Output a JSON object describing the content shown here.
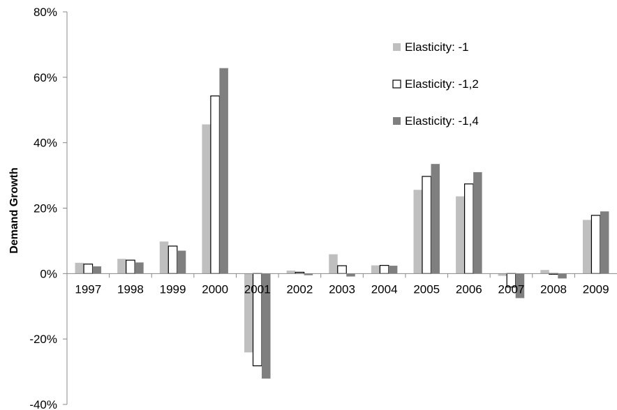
{
  "chart_data": {
    "type": "bar",
    "title": "",
    "xlabel": "",
    "ylabel": "Demand Growth",
    "ylim": [
      -40,
      80
    ],
    "yticks": [
      -40,
      -20,
      0,
      20,
      40,
      60,
      80
    ],
    "ytick_labels": [
      "-40%",
      "-20%",
      "0%",
      "20%",
      "40%",
      "60%",
      "80%"
    ],
    "categories": [
      "1997",
      "1998",
      "1999",
      "2000",
      "2001",
      "2002",
      "2003",
      "2004",
      "2005",
      "2006",
      "2007",
      "2008",
      "2009"
    ],
    "series": [
      {
        "name": "Elasticity: -1",
        "color": "#bfbfbf",
        "values": [
          3.3,
          4.5,
          9.8,
          45.6,
          -24.1,
          0.9,
          5.9,
          2.5,
          25.6,
          23.6,
          -0.7,
          1.1,
          16.4
        ]
      },
      {
        "name": "Elasticity: -1,2",
        "color": "#ffffff",
        "values": [
          2.9,
          4.1,
          8.4,
          54.3,
          -28.2,
          0.4,
          2.4,
          2.5,
          29.7,
          27.4,
          -4.1,
          -0.2,
          17.8
        ]
      },
      {
        "name": "Elasticity: -1,4",
        "color": "#7f7f7f",
        "values": [
          2.2,
          3.4,
          7.0,
          62.8,
          -32.1,
          -0.5,
          -0.9,
          2.4,
          33.5,
          31.0,
          -7.5,
          -1.5,
          19.0
        ]
      }
    ],
    "grid": false,
    "legend_position": "top-right"
  }
}
